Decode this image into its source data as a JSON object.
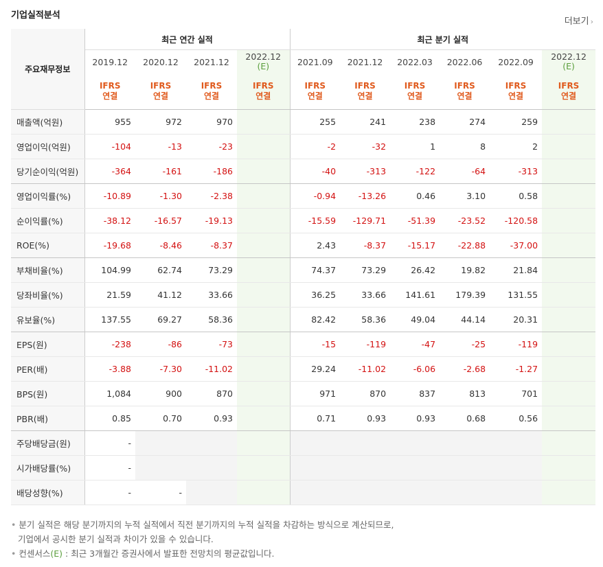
{
  "title": "기업실적분석",
  "more_label": "더보기",
  "row_header": "주요재무정보",
  "groups": {
    "annual": "최근 연간 실적",
    "quarterly": "최근 분기 실적"
  },
  "periods": [
    {
      "label": "2019.12",
      "est": false
    },
    {
      "label": "2020.12",
      "est": false
    },
    {
      "label": "2021.12",
      "est": false
    },
    {
      "label": "2022.12",
      "est": true
    },
    {
      "label": "2021.09",
      "est": false
    },
    {
      "label": "2021.12",
      "est": false
    },
    {
      "label": "2022.03",
      "est": false
    },
    {
      "label": "2022.06",
      "est": false
    },
    {
      "label": "2022.09",
      "est": false
    },
    {
      "label": "2022.12",
      "est": true
    }
  ],
  "est_mark": "(E)",
  "ifrs": {
    "line1": "IFRS",
    "line2": "연결"
  },
  "rows": [
    {
      "label": "매출액(억원)",
      "values": [
        "955",
        "972",
        "970",
        "",
        "255",
        "241",
        "238",
        "274",
        "259",
        ""
      ]
    },
    {
      "label": "영업이익(억원)",
      "values": [
        "-104",
        "-13",
        "-23",
        "",
        "-2",
        "-32",
        "1",
        "8",
        "2",
        ""
      ]
    },
    {
      "label": "당기순이익(억원)",
      "values": [
        "-364",
        "-161",
        "-186",
        "",
        "-40",
        "-313",
        "-122",
        "-64",
        "-313",
        ""
      ]
    },
    {
      "label": "영업이익률(%)",
      "values": [
        "-10.89",
        "-1.30",
        "-2.38",
        "",
        "-0.94",
        "-13.26",
        "0.46",
        "3.10",
        "0.58",
        ""
      ]
    },
    {
      "label": "순이익률(%)",
      "values": [
        "-38.12",
        "-16.57",
        "-19.13",
        "",
        "-15.59",
        "-129.71",
        "-51.39",
        "-23.52",
        "-120.58",
        ""
      ]
    },
    {
      "label": "ROE(%)",
      "values": [
        "-19.68",
        "-8.46",
        "-8.37",
        "",
        "2.43",
        "-8.37",
        "-15.17",
        "-22.88",
        "-37.00",
        ""
      ]
    },
    {
      "label": "부채비율(%)",
      "values": [
        "104.99",
        "62.74",
        "73.29",
        "",
        "74.37",
        "73.29",
        "26.42",
        "19.82",
        "21.84",
        ""
      ]
    },
    {
      "label": "당좌비율(%)",
      "values": [
        "21.59",
        "41.12",
        "33.66",
        "",
        "36.25",
        "33.66",
        "141.61",
        "179.39",
        "131.55",
        ""
      ]
    },
    {
      "label": "유보율(%)",
      "values": [
        "137.55",
        "69.27",
        "58.36",
        "",
        "82.42",
        "58.36",
        "49.04",
        "44.14",
        "20.31",
        ""
      ]
    },
    {
      "label": "EPS(원)",
      "values": [
        "-238",
        "-86",
        "-73",
        "",
        "-15",
        "-119",
        "-47",
        "-25",
        "-119",
        ""
      ]
    },
    {
      "label": "PER(배)",
      "values": [
        "-3.88",
        "-7.30",
        "-11.02",
        "",
        "29.24",
        "-11.02",
        "-6.06",
        "-2.68",
        "-1.27",
        ""
      ]
    },
    {
      "label": "BPS(원)",
      "values": [
        "1,084",
        "900",
        "870",
        "",
        "971",
        "870",
        "837",
        "813",
        "701",
        ""
      ]
    },
    {
      "label": "PBR(배)",
      "values": [
        "0.85",
        "0.70",
        "0.93",
        "",
        "0.71",
        "0.93",
        "0.93",
        "0.68",
        "0.56",
        ""
      ]
    },
    {
      "label": "주당배당금(원)",
      "values": [
        "-",
        "",
        "",
        "",
        "",
        "",
        "",
        "",
        "",
        ""
      ]
    },
    {
      "label": "시가배당률(%)",
      "values": [
        "-",
        "",
        "",
        "",
        "",
        "",
        "",
        "",
        "",
        ""
      ]
    },
    {
      "label": "배당성향(%)",
      "values": [
        "-",
        "-",
        "",
        "",
        "",
        "",
        "",
        "",
        "",
        ""
      ]
    }
  ],
  "notes": {
    "line1": "분기 실적은 해당 분기까지의 누적 실적에서 직전 분기까지의 누적 실적을 차감하는 방식으로 계산되므로,",
    "line2": "기업에서 공시한 분기 실적과 차이가 있을 수 있습니다.",
    "line3_pre": "컨센서스",
    "line3_mark": "(E)",
    "line3_post": " : 최근 3개월간 증권사에서 발표한 전망치의 평균값입니다."
  },
  "colors": {
    "negative": "#d31010",
    "ifrs": "#e05a1d",
    "estimate": "#5a9e3c",
    "estimate_bg": "#f2f9ee"
  }
}
